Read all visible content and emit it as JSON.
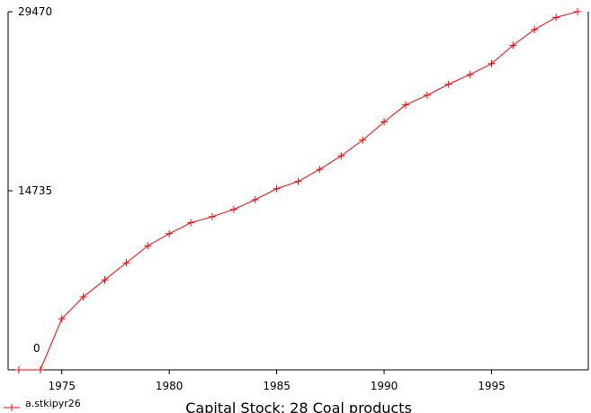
{
  "chart_data": {
    "type": "line",
    "title": "Capital Stock: 28 Coal products",
    "legend": "a.stkipyr26",
    "legend_position": "bottom-left",
    "color": "#ff0000",
    "grid": false,
    "xlim": [
      1972.5,
      1999.5
    ],
    "ylim": [
      0,
      29470
    ],
    "y_ticks": [
      0,
      14735,
      29470
    ],
    "y_tick_labels": [
      "0",
      "14735",
      "29470"
    ],
    "x_ticks": [
      1975,
      1980,
      1985,
      1990,
      1995
    ],
    "x_tick_labels": [
      "1975",
      "1980",
      "1985",
      "1990",
      "1995"
    ],
    "series": [
      {
        "name": "a.stkipyr26",
        "x": [
          1973,
          1974,
          1975,
          1976,
          1977,
          1978,
          1979,
          1980,
          1981,
          1982,
          1983,
          1984,
          1985,
          1986,
          1987,
          1988,
          1989,
          1990,
          1991,
          1992,
          1993,
          1994,
          1995,
          1996,
          1997,
          1998,
          1999
        ],
        "y": [
          0,
          0,
          4200,
          6000,
          7400,
          8800,
          10200,
          11200,
          12100,
          12600,
          13200,
          14000,
          14900,
          15500,
          16500,
          17600,
          18900,
          20400,
          21800,
          22600,
          23500,
          24300,
          25200,
          26700,
          28000,
          29000,
          29470
        ]
      }
    ]
  }
}
